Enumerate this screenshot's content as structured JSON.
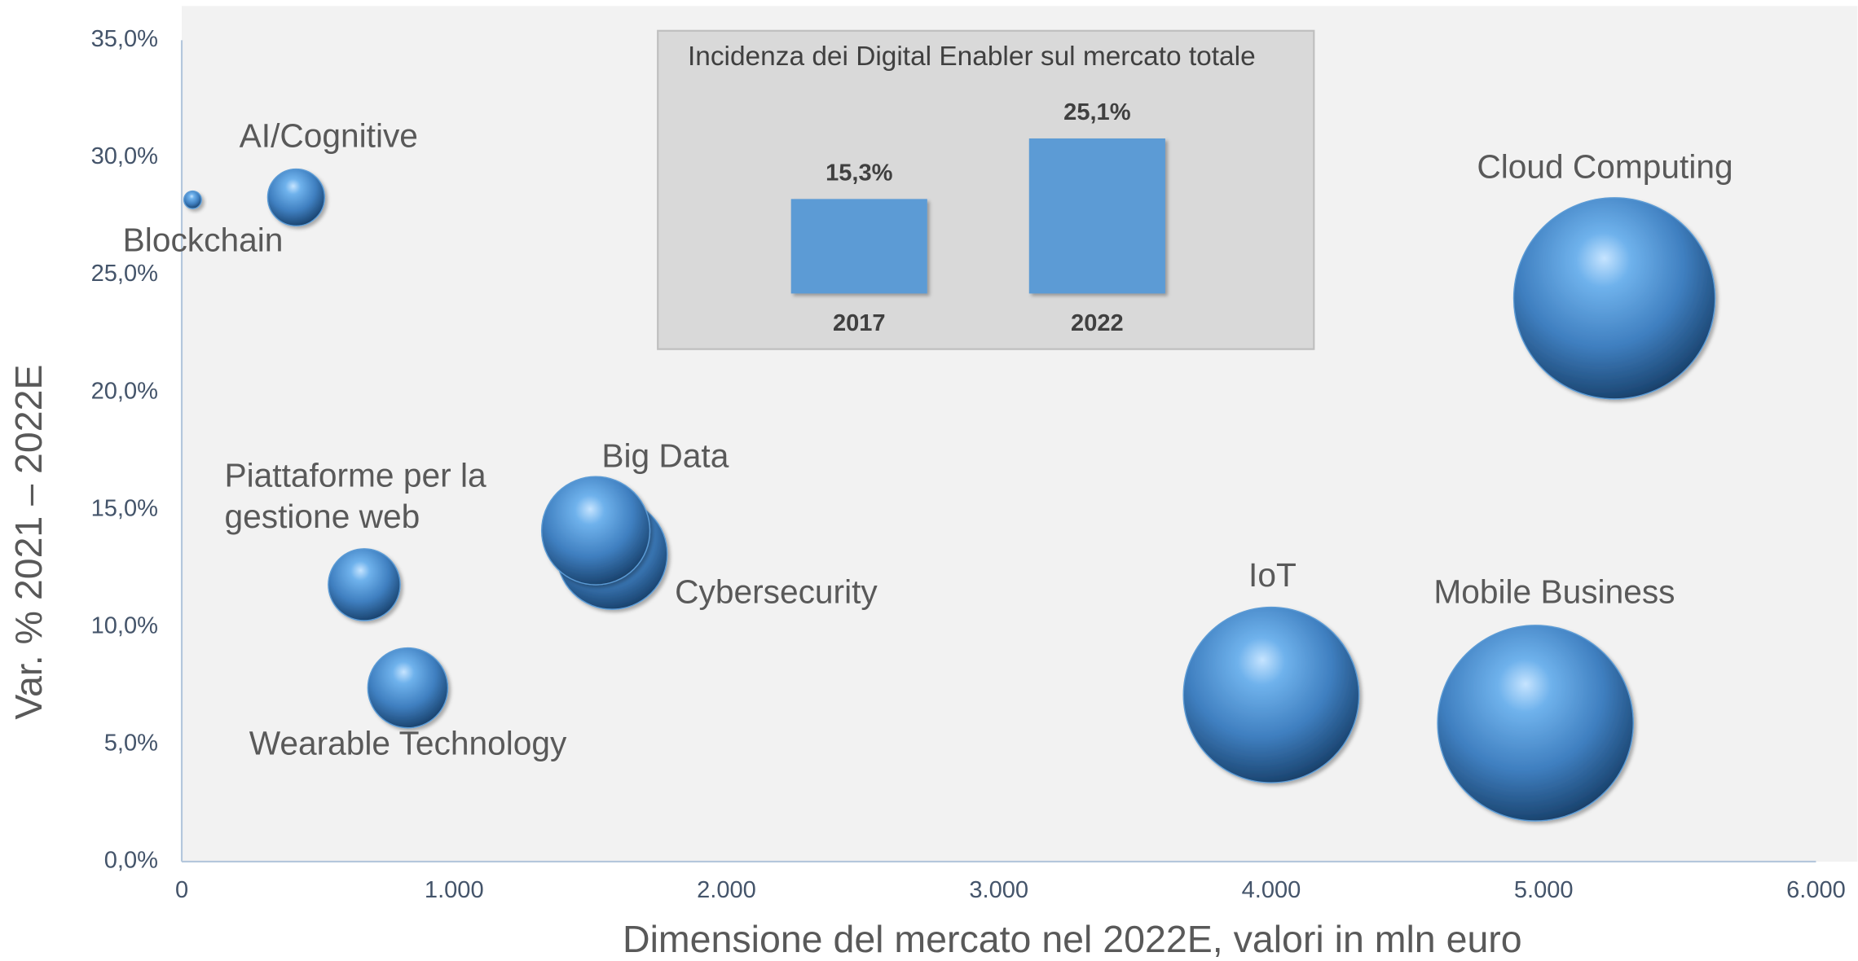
{
  "chart_data": [
    {
      "type": "bubble",
      "x_label": "Dimensione del mercato nel 2022E, valori in mln euro",
      "y_label": "Var. % 2021 – 2022E",
      "color": "#5b9bd5",
      "xlim": [
        0,
        6000
      ],
      "xticks": [
        0,
        {
          "value": 1000,
          "label": "1.000"
        },
        {
          "value": 2000,
          "label": "2.000"
        },
        {
          "value": 3000,
          "label": "3.000"
        },
        {
          "value": 4000,
          "label": "4.000"
        },
        {
          "value": 5000,
          "label": "5.000"
        },
        {
          "value": 6000,
          "label": "6.000"
        }
      ],
      "ylim": [
        0,
        35
      ],
      "yticks": [
        {
          "value": 0,
          "label": "0,0%"
        },
        {
          "value": 5,
          "label": "5,0%"
        },
        {
          "value": 10,
          "label": "10,0%"
        },
        {
          "value": 15,
          "label": "15,0%"
        },
        {
          "value": 20,
          "label": "20,0%"
        },
        {
          "value": 25,
          "label": "25,0%"
        },
        {
          "value": 30,
          "label": "30,0%"
        },
        {
          "value": 35,
          "label": "35,0%"
        }
      ],
      "grid": false,
      "series": [
        {
          "name": "Blockchain",
          "x": 40,
          "y": 28.2
        },
        {
          "name": "AI/Cognitive",
          "x": 420,
          "y": 28.3
        },
        {
          "name": "Piattaforme per la gestione web",
          "x": 670,
          "y": 11.8
        },
        {
          "name": "Wearable Technology",
          "x": 830,
          "y": 7.4
        },
        {
          "name": "Cybersecurity",
          "x": 1580,
          "y": 13.1
        },
        {
          "name": "Big Data",
          "x": 1520,
          "y": 14.1
        },
        {
          "name": "IoT",
          "x": 4000,
          "y": 7.1
        },
        {
          "name": "Mobile Business",
          "x": 4970,
          "y": 5.9
        },
        {
          "name": "Cloud Computing",
          "x": 5260,
          "y": 24.0
        }
      ]
    },
    {
      "type": "bar",
      "title": "Incidenza dei Digital Enabler sul mercato totale",
      "color": "#5b9bd5",
      "categories": [
        "2017",
        "2022"
      ],
      "values": [
        15.3,
        25.1
      ],
      "value_labels": [
        "15,3%",
        "25,1%"
      ]
    }
  ]
}
